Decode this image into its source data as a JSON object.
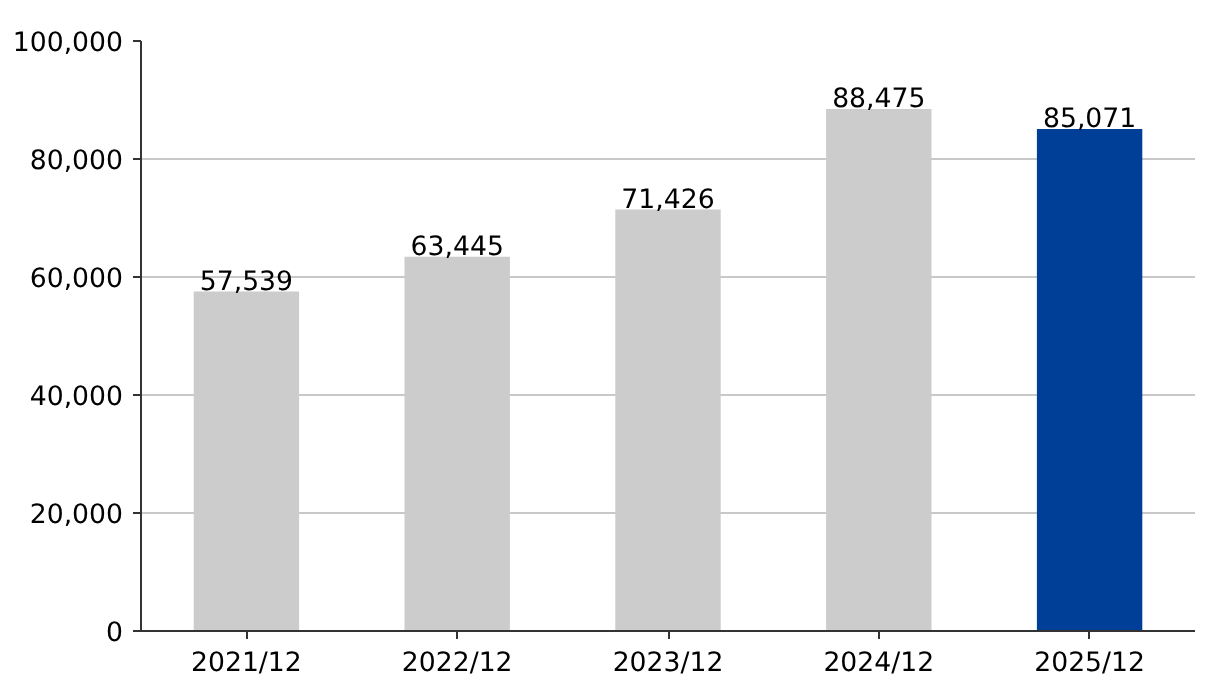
{
  "chart_data": {
    "type": "bar",
    "categories": [
      "2021/12",
      "2022/12",
      "2023/12",
      "2024/12",
      "2025/12"
    ],
    "values": [
      57539,
      63445,
      71426,
      88475,
      85071
    ],
    "colors": [
      "#cccccc",
      "#cccccc",
      "#cccccc",
      "#cccccc",
      "#003f98"
    ],
    "value_labels": [
      "57,539",
      "63,445",
      "71,426",
      "88,475",
      "85,071"
    ],
    "ylim": [
      0,
      100000
    ],
    "yticks": [
      {
        "value": 0,
        "label": "0"
      },
      {
        "value": 20000,
        "label": "20,000"
      },
      {
        "value": 40000,
        "label": "40,000"
      },
      {
        "value": 60000,
        "label": "60,000"
      },
      {
        "value": 80000,
        "label": "80,000"
      },
      {
        "value": 100000,
        "label": "100,000"
      }
    ],
    "grid": "y"
  }
}
